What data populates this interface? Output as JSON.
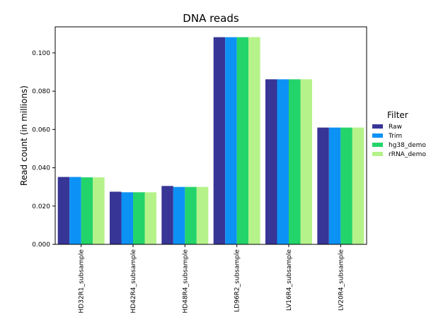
{
  "chart_data": {
    "type": "bar",
    "title": "DNA reads",
    "xlabel": "",
    "ylabel": "Read count (in millions)",
    "ylim": [
      0,
      0.1136
    ],
    "yticks": [
      "0.000",
      "0.020",
      "0.040",
      "0.060",
      "0.080",
      "0.100"
    ],
    "grid": false,
    "legend_title": "Filter",
    "legend_position": "right",
    "categories": [
      "HD32R1_subsample",
      "HD42R4_subsample",
      "HD48R4_subsample",
      "LD96R2_subsample",
      "LV16R4_subsample",
      "LV20R4_subsample"
    ],
    "series": [
      {
        "name": "Raw",
        "color": "#373596",
        "values": [
          0.0352,
          0.0275,
          0.0305,
          0.1082,
          0.0862,
          0.061
        ]
      },
      {
        "name": "Trim",
        "color": "#0c92f5",
        "values": [
          0.0352,
          0.0272,
          0.03,
          0.1082,
          0.0862,
          0.061
        ]
      },
      {
        "name": "hg38_demo",
        "color": "#23d46a",
        "values": [
          0.035,
          0.0272,
          0.03,
          0.1082,
          0.0862,
          0.061
        ]
      },
      {
        "name": "rRNA_demo",
        "color": "#b6f28a",
        "values": [
          0.035,
          0.0272,
          0.03,
          0.1082,
          0.0862,
          0.061
        ]
      }
    ]
  }
}
